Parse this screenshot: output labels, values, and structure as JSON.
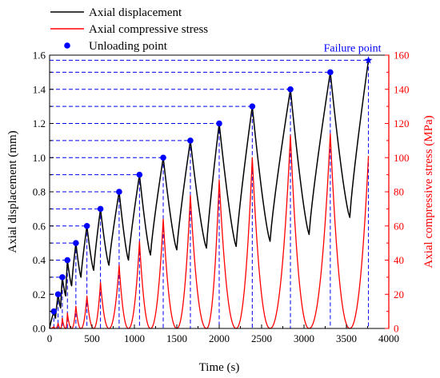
{
  "chart_data": {
    "type": "line",
    "xlabel": "Time (s)",
    "ylabel_left": "Axial displacement (mm)",
    "ylabel_right": "Axial compressive stress (MPa)",
    "xlim": [
      0,
      4000
    ],
    "ylim_left": [
      0,
      1.6
    ],
    "ylim_right": [
      0,
      160
    ],
    "x_ticks": [
      0,
      500,
      1000,
      1500,
      2000,
      2500,
      3000,
      3500,
      4000
    ],
    "y_left_ticks": [
      0.0,
      0.2,
      0.4,
      0.6,
      0.8,
      1.0,
      1.2,
      1.4,
      1.6
    ],
    "y_right_ticks": [
      0,
      20,
      40,
      60,
      80,
      100,
      120,
      140,
      160
    ],
    "legend_position": "top-left",
    "grid": false,
    "colors": {
      "displacement": "#000000",
      "stress": "#ff0000",
      "unloading": "#0000ff",
      "axis_right": "#ff0000"
    },
    "legend": [
      {
        "name": "Axial displacement",
        "marker": "line",
        "color": "#000000"
      },
      {
        "name": "Axial compressive stress",
        "marker": "line",
        "color": "#ff0000"
      },
      {
        "name": "Unloading point",
        "marker": "dot",
        "color": "#0000ff"
      }
    ],
    "annotation": {
      "text": "Failure point",
      "x": 3760,
      "y": 1.57
    },
    "cycles": [
      {
        "t_unload": 50,
        "disp_peak": 0.1,
        "t_end": 70,
        "disp_valley": 0.06,
        "stress_peak": 1
      },
      {
        "t_unload": 100,
        "disp_peak": 0.2,
        "t_end": 130,
        "disp_valley": 0.12,
        "stress_peak": 3
      },
      {
        "t_unload": 150,
        "disp_peak": 0.3,
        "t_end": 190,
        "disp_valley": 0.19,
        "stress_peak": 6
      },
      {
        "t_unload": 210,
        "disp_peak": 0.4,
        "t_end": 260,
        "disp_valley": 0.25,
        "stress_peak": 9
      },
      {
        "t_unload": 310,
        "disp_peak": 0.5,
        "t_end": 370,
        "disp_valley": 0.3,
        "stress_peak": 13
      },
      {
        "t_unload": 440,
        "disp_peak": 0.6,
        "t_end": 520,
        "disp_valley": 0.34,
        "stress_peak": 19
      },
      {
        "t_unload": 600,
        "disp_peak": 0.7,
        "t_end": 700,
        "disp_valley": 0.37,
        "stress_peak": 27
      },
      {
        "t_unload": 820,
        "disp_peak": 0.8,
        "t_end": 930,
        "disp_valley": 0.4,
        "stress_peak": 37
      },
      {
        "t_unload": 1060,
        "disp_peak": 0.9,
        "t_end": 1190,
        "disp_valley": 0.43,
        "stress_peak": 51
      },
      {
        "t_unload": 1340,
        "disp_peak": 1.0,
        "t_end": 1500,
        "disp_valley": 0.46,
        "stress_peak": 64
      },
      {
        "t_unload": 1660,
        "disp_peak": 1.1,
        "t_end": 1850,
        "disp_valley": 0.47,
        "stress_peak": 78
      },
      {
        "t_unload": 2000,
        "disp_peak": 1.2,
        "t_end": 2200,
        "disp_valley": 0.48,
        "stress_peak": 87
      },
      {
        "t_unload": 2390,
        "disp_peak": 1.3,
        "t_end": 2600,
        "disp_valley": 0.51,
        "stress_peak": 100
      },
      {
        "t_unload": 2840,
        "disp_peak": 1.4,
        "t_end": 3060,
        "disp_valley": 0.55,
        "stress_peak": 113
      },
      {
        "t_unload": 3310,
        "disp_peak": 1.5,
        "t_end": 3540,
        "disp_valley": 0.65,
        "stress_peak": 114
      },
      {
        "t_unload": 3760,
        "disp_peak": 1.57,
        "t_end": 3760,
        "disp_valley": 1.57,
        "stress_peak": 101,
        "failure": true
      }
    ]
  }
}
